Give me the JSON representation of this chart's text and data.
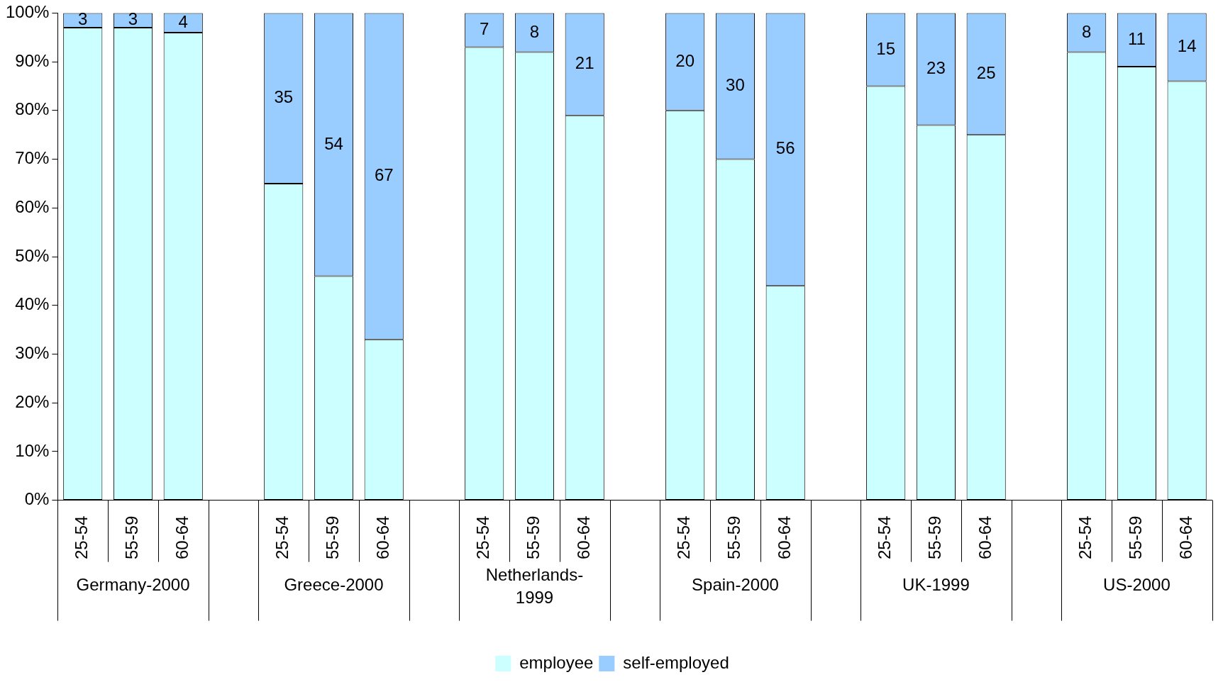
{
  "chart_data": {
    "type": "bar",
    "stacked": true,
    "categories": [
      "25-54",
      "55-59",
      "60-64",
      null,
      "25-54",
      "55-59",
      "60-64",
      null,
      "25-54",
      "55-59",
      "60-64",
      null,
      "25-54",
      "55-59",
      "60-64",
      null,
      "25-54",
      "55-59",
      "60-64",
      null,
      "25-54",
      "55-59",
      "60-64"
    ],
    "series": [
      {
        "name": "employee",
        "color": "#ccffff",
        "values": [
          97,
          97,
          96,
          null,
          65,
          46,
          33,
          null,
          93,
          92,
          79,
          null,
          80,
          70,
          44,
          null,
          85,
          77,
          75,
          null,
          92,
          89,
          86
        ]
      },
      {
        "name": "self-employed",
        "color": "#99ccff",
        "values": [
          3,
          3,
          4,
          null,
          35,
          54,
          67,
          null,
          7,
          8,
          21,
          null,
          20,
          30,
          56,
          null,
          15,
          23,
          25,
          null,
          8,
          11,
          14
        ],
        "value_labels": [
          "3",
          "3",
          "4",
          null,
          "35",
          "54",
          "67",
          null,
          "7",
          "8",
          "21",
          null,
          "20",
          "30",
          "56",
          null,
          "15",
          "23",
          "25",
          null,
          "8",
          "11",
          "14"
        ]
      }
    ],
    "annotations": [
      "Germany-2000",
      "Greece-2000",
      "Netherlands-1999",
      "Spain-2000",
      "UK-1999",
      "US-2000"
    ],
    "ylim": [
      0,
      100
    ],
    "yticks": [
      {
        "value": 0,
        "label": "0%"
      },
      {
        "value": 10,
        "label": "10%"
      },
      {
        "value": 20,
        "label": "20%"
      },
      {
        "value": 30,
        "label": "30%"
      },
      {
        "value": 40,
        "label": "40%"
      },
      {
        "value": 50,
        "label": "50%"
      },
      {
        "value": 60,
        "label": "60%"
      },
      {
        "value": 70,
        "label": "70%"
      },
      {
        "value": 80,
        "label": "80%"
      },
      {
        "value": 90,
        "label": "90%"
      },
      {
        "value": 100,
        "label": "100%"
      }
    ],
    "legend": "bottom"
  }
}
